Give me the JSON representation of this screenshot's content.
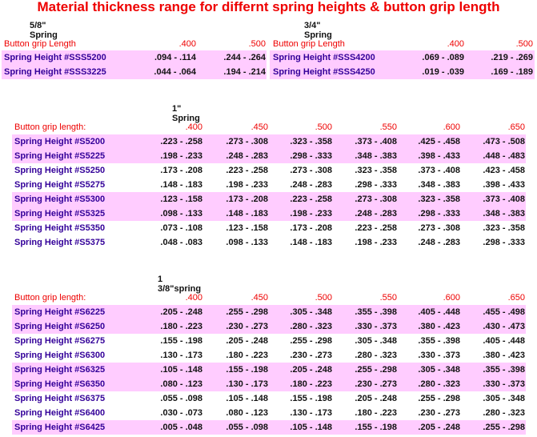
{
  "title": "Material thickness range for differnt spring heights & button grip length",
  "colors": {
    "title": "#ee0000",
    "header": "#ee0000",
    "label": "#330099",
    "band": "#ffccff"
  },
  "tables": [
    {
      "section": "5/8\" Spring",
      "header_label": "Button grip Length",
      "columns": [
        ".400",
        ".500"
      ],
      "rows": [
        {
          "label": "Spring Height #SSS5200",
          "values": [
            ".094 - .114",
            ".244 - .264"
          ],
          "pink": true
        },
        {
          "label": "Spring Height #SSS3225",
          "values": [
            ".044 - .064",
            ".194 - .214"
          ],
          "pink": true
        }
      ]
    },
    {
      "section": "3/4\" Spring",
      "header_label": "Button grip Length",
      "columns": [
        ".400",
        ".500"
      ],
      "rows": [
        {
          "label": "Spring Height #SSS4200",
          "values": [
            ".069 - .089",
            ".219 - .269"
          ],
          "pink": true
        },
        {
          "label": "Spring Height #SSS4250",
          "values": [
            ".019 - .039",
            ".169 - .189"
          ],
          "pink": true
        }
      ]
    },
    {
      "section": "1\" Spring",
      "header_label": "Button grip length:",
      "columns": [
        ".400",
        ".450",
        ".500",
        ".550",
        ".600",
        ".650"
      ],
      "rows": [
        {
          "label": "Spring Height #S5200",
          "values": [
            ".223 - .258",
            ".273 - .308",
            ".323 - .358",
            ".373 - .408",
            ".425 - .458",
            ".473 - .508"
          ],
          "pink": true
        },
        {
          "label": "Spring Height #S5225",
          "values": [
            ".198 - .233",
            ".248 - .283",
            ".298 - .333",
            ".348 - .383",
            ".398 - .433",
            ".448 - .483"
          ],
          "pink": true
        },
        {
          "label": "Spring Height #S5250",
          "values": [
            ".173 - .208",
            ".223 - .258",
            ".273 - .308",
            ".323 - .358",
            ".373 - .408",
            ".423 - .458"
          ],
          "pink": false
        },
        {
          "label": "Spring Height #S5275",
          "values": [
            ".148 - .183",
            ".198 - .233",
            ".248 - .283",
            ".298 - .333",
            ".348 - .383",
            ".398 - .433"
          ],
          "pink": false
        },
        {
          "label": "Spring Height #S5300",
          "values": [
            ".123 - .158",
            ".173 - .208",
            ".223 - .258",
            ".273 - .308",
            ".323 - .358",
            ".373 - .408"
          ],
          "pink": true
        },
        {
          "label": "Spring Height #S5325",
          "values": [
            ".098 - .133",
            ".148 - .183",
            ".198 - .233",
            ".248 - .283",
            ".298 - .333",
            ".348 - .383"
          ],
          "pink": true
        },
        {
          "label": "Spring Height #S5350",
          "values": [
            ".073 - .108",
            ".123 - .158",
            ".173 - .208",
            ".223 - .258",
            ".273 - .308",
            ".323 - .358"
          ],
          "pink": false
        },
        {
          "label": "Spring Height #S5375",
          "values": [
            ".048 - .083",
            ".098 - .133",
            ".148 - .183",
            ".198 - .233",
            ".248 - .283",
            ".298 - .333"
          ],
          "pink": false
        }
      ]
    },
    {
      "section": "1 3/8\"spring",
      "header_label": "Button grip length:",
      "columns": [
        ".400",
        ".450",
        ".500",
        ".550",
        ".600",
        ".650"
      ],
      "rows": [
        {
          "label": "Spring Height #S6225",
          "values": [
            ".205 - .248",
            ".255 - .298",
            ".305 - .348",
            ".355 - .398",
            ".405 - .448",
            ".455 - .498"
          ],
          "pink": true
        },
        {
          "label": "Spring Height #S6250",
          "values": [
            ".180 - .223",
            ".230 - .273",
            ".280 - .323",
            ".330 - .373",
            ".380 - .423",
            ".430 - .473"
          ],
          "pink": true
        },
        {
          "label": "Spring Height #S6275",
          "values": [
            ".155 - .198",
            ".205 - .248",
            ".255 - .298",
            ".305 - .348",
            ".355 - .398",
            ".405 - .448"
          ],
          "pink": false
        },
        {
          "label": "Spring Height #S6300",
          "values": [
            ".130 - .173",
            ".180 - .223",
            ".230 - .273",
            ".280 - .323",
            ".330 - .373",
            ".380 - .423"
          ],
          "pink": false
        },
        {
          "label": "Spring Height #S6325",
          "values": [
            ".105 - .148",
            ".155 - .198",
            ".205 - .248",
            ".255 - .298",
            ".305 - .348",
            ".355 - .398"
          ],
          "pink": true
        },
        {
          "label": "Spring Height #S6350",
          "values": [
            ".080 - .123",
            ".130 - .173",
            ".180 - .223",
            ".230 - .273",
            ".280 - .323",
            ".330 - .373"
          ],
          "pink": true
        },
        {
          "label": "Spring Height #S6375",
          "values": [
            ".055 - .098",
            ".105 - .148",
            ".155 - .198",
            ".205 - .248",
            ".255 - .298",
            ".305 - .348"
          ],
          "pink": false
        },
        {
          "label": "Spring Height #S6400",
          "values": [
            ".030 - .073",
            ".080 - .123",
            ".130 - .173",
            ".180 - .223",
            ".230 - .273",
            ".280 - .323"
          ],
          "pink": false
        },
        {
          "label": "Spring Height #S6425",
          "values": [
            ".005 - .048",
            ".055 - .098",
            ".105 - .148",
            ".155 - .198",
            ".205 - .248",
            ".255 - .298"
          ],
          "pink": true
        }
      ]
    }
  ]
}
